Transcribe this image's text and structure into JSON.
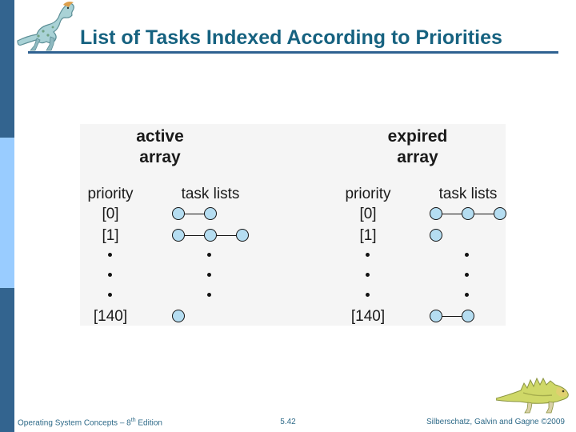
{
  "page": {
    "title": "List of Tasks Indexed According to Priorities"
  },
  "colors": {
    "sidebar_dark": "#33648f",
    "sidebar_light": "#99ccff",
    "title_text": "#166280",
    "rule": "#2e6191",
    "footer_text": "#2e6a88",
    "panel_bg": "#f5f5f5",
    "node_fill": "#b5ddf1",
    "node_stroke": "#141414",
    "diagram_text": "#1a1a1a"
  },
  "diagram": {
    "arrays": [
      {
        "name": "active-array",
        "header_line1": "active",
        "header_line2": "array",
        "col1_header": "priority",
        "col2_header": "task lists",
        "rows": [
          {
            "label": "[0]",
            "nodes": 2
          },
          {
            "label": "[1]",
            "nodes": 3
          },
          {
            "label": "[140]",
            "nodes": 1
          }
        ],
        "ellipsis_dots": 3
      },
      {
        "name": "expired-array",
        "header_line1": "expired",
        "header_line2": "array",
        "col1_header": "priority",
        "col2_header": "task lists",
        "rows": [
          {
            "label": "[0]",
            "nodes": 3
          },
          {
            "label": "[1]",
            "nodes": 1
          },
          {
            "label": "[140]",
            "nodes": 2
          }
        ],
        "ellipsis_dots": 3
      }
    ]
  },
  "footer": {
    "left_prefix": "Operating System Concepts – 8",
    "left_sup": "th",
    "left_suffix": " Edition",
    "page_number": "5.42",
    "right": "Silberschatz, Galvin and Gagne ©2009"
  }
}
